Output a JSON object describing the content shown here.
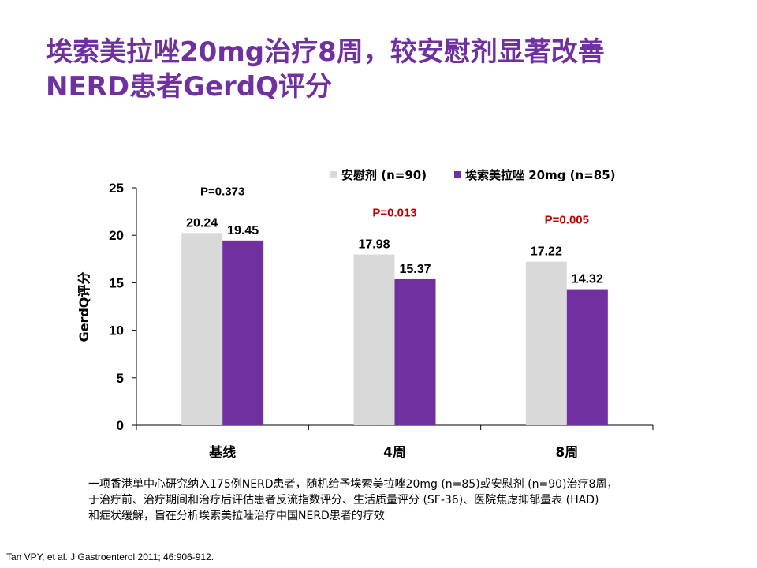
{
  "title": {
    "line1": "埃索美拉唑20mg治疗8周，较安慰剂显著改善",
    "line2": "NERD患者GerdQ评分"
  },
  "chart_data": {
    "type": "bar",
    "categories": [
      "基线",
      "4周",
      "8周"
    ],
    "series": [
      {
        "name": "安慰剂 (n=90)",
        "values": [
          20.24,
          17.98,
          17.22
        ],
        "color": "#D9D9D9"
      },
      {
        "name": "埃索美拉唑 20mg (n=85)",
        "values": [
          19.45,
          15.37,
          14.32
        ],
        "color": "#7030A0"
      }
    ],
    "data_labels": [
      [
        "20.24",
        "17.98",
        "17.22"
      ],
      [
        "19.45",
        "15.37",
        "14.32"
      ]
    ],
    "p_values": [
      {
        "text": "P=0.373",
        "color": "#000000"
      },
      {
        "text": "P=0.013",
        "color": "#C00000"
      },
      {
        "text": "P=0.005",
        "color": "#C00000"
      }
    ],
    "ylabel": "GerdQ评分",
    "ylim": [
      0,
      25
    ],
    "yticks": [
      0,
      5,
      10,
      15,
      20,
      25
    ],
    "ytick_labels": [
      "0",
      "5",
      "10",
      "15",
      "20",
      "25"
    ],
    "grid": false,
    "legend_position": "top-right"
  },
  "note": {
    "line1": "一项香港单中心研究纳入175例NERD患者，随机给予埃索美拉唑20mg (n=85)或安慰剂 (n=90)治疗8周，",
    "line2": "于治疗前、治疗期间和治疗后评估患者反流指数评分、生活质量评分 (SF-36)、医院焦虑抑郁量表 (HAD)",
    "line3": "和症状缓解，旨在分析埃索美拉唑治疗中国NERD患者的疗效"
  },
  "citation": "Tan VPY, et al. J Gastroenterol 2011; 46:906-912."
}
